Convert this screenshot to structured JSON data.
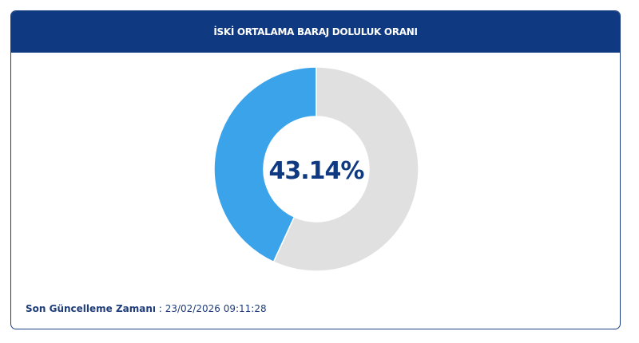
{
  "header": {
    "title": "İSKİ ORTALAMA BARAJ DOLULUK ORANI"
  },
  "chart_data": {
    "type": "pie",
    "variant": "donut",
    "values": [
      43.14,
      56.86
    ],
    "center_label": "43.14%",
    "colors": [
      "#3aa3ea",
      "#e0e0e0"
    ]
  },
  "footer": {
    "label": "Son Güncelleme Zamanı",
    "separator": " : ",
    "value": "23/02/2026 09:11:28"
  }
}
